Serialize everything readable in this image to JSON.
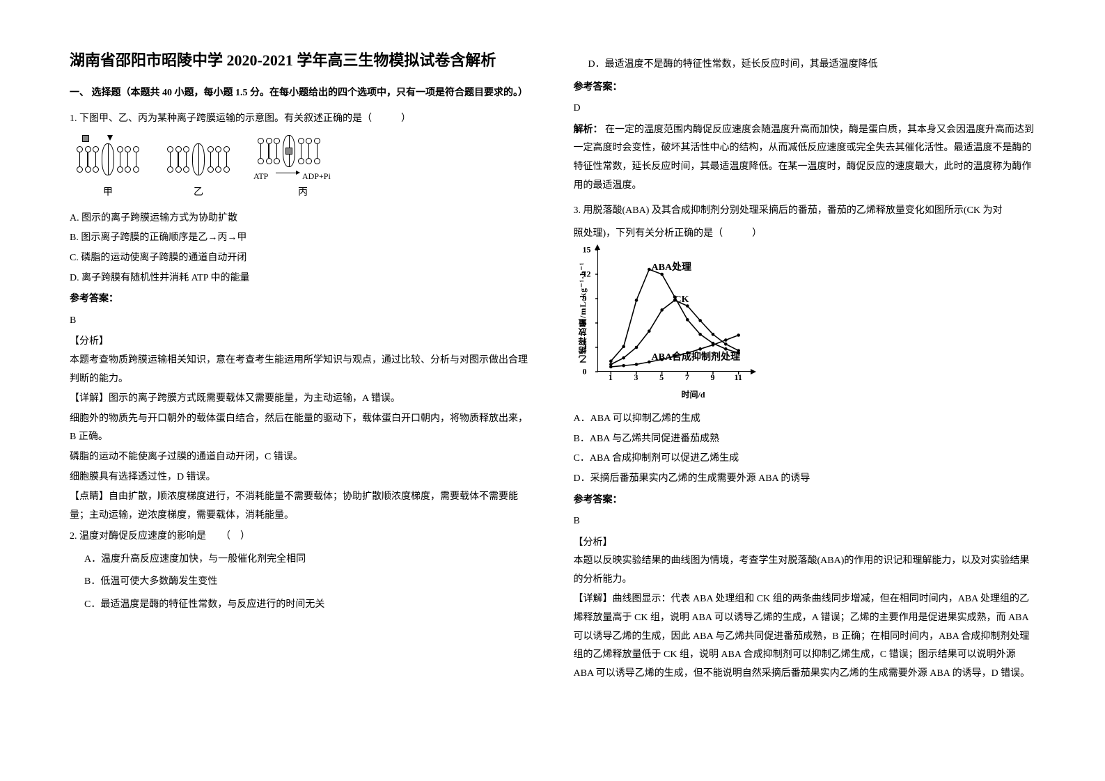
{
  "title": "湖南省邵阳市昭陵中学 2020-2021 学年高三生物模拟试卷含解析",
  "section1": {
    "heading_prefix": "一、 选择题（本题共",
    "heading_count": "40",
    "heading_mid": "小题，每小题",
    "heading_score": "1.5",
    "heading_suffix": "分。在每小题给出的四个选项中，只有一项是符合题目要求的。）"
  },
  "q1": {
    "stem": "1. 下图甲、乙、丙为某种离子跨膜运输的示意图。有关叙述正确的是（　　　）",
    "fig": {
      "labels": [
        "甲",
        "乙",
        "丙"
      ],
      "atp_left": "ATP",
      "atp_right": "ADP+Pi"
    },
    "opts": {
      "A": "A. 图示的离子跨膜运输方式为协助扩散",
      "B": "B. 图示离子跨膜的正确顺序是乙→丙→甲",
      "C": "C. 磷脂的运动使离子跨膜的通道自动开闭",
      "D": "D. 离子跨膜有随机性并消耗 ATP 中的能量"
    },
    "answer_label": "参考答案：",
    "answer": "B",
    "analysis_label": "【分析】",
    "analysis_p1": "本题考查物质跨膜运输相关知识，意在考查考生能运用所学知识与观点，通过比较、分析与对图示做出合理判断的能力。",
    "detail_p1": "【详解】图示的离子跨膜方式既需要载体又需要能量，为主动运输，A 错误。",
    "detail_p2": "细胞外的物质先与开口朝外的载体蛋白结合，然后在能量的驱动下，载体蛋白开口朝内，将物质释放出来，B 正确。",
    "detail_p3": "磷脂的运动不能使离子过膜的通道自动开闭，C 错误。",
    "detail_p4": "细胞膜具有选择透过性，D 错误。",
    "tip": "【点睛】自由扩散，顺浓度梯度进行，不消耗能量不需要载体；协助扩散顺浓度梯度，需要载体不需要能量；主动运输，逆浓度梯度，需要载体，消耗能量。"
  },
  "q2": {
    "stem": "2. 温度对酶促反应速度的影响是　　（　）",
    "opts": {
      "A": "A．温度升高反应速度加快，与一般催化剂完全相同",
      "B": "B．低温可使大多数酶发生变性",
      "C": "C．最适温度是酶的特征性常数，与反应进行的时间无关",
      "D": "D．最适温度不是酶的特征性常数，延长反应时间，其最适温度降低"
    },
    "answer_label": "参考答案：",
    "answer": "D",
    "analysis_label": "解析：",
    "analysis": "在一定的温度范围内酶促反应速度会随温度升高而加快，酶是蛋白质，其本身又会因温度升高而达到一定高度时会变性，破坏其活性中心的结构，从而减低反应速度或完全失去其催化活性。最适温度不是酶的特征性常数，延长反应时间，其最适温度降低。在某一温度时，酶促反应的速度最大，此时的温度称为酶作用的最适温度。"
  },
  "q3": {
    "stem_p1": "3. 用脱落酸(ABA) 及其合成抑制剂分别处理采摘后的番茄，番茄的乙烯释放量变化如图所示(CK 为对",
    "stem_p2": "照处理)，下列有关分析正确的是（　　　）",
    "chart": {
      "type": "line",
      "ylabel": "乙烯释放量/mL·kg⁻¹·h⁻¹",
      "xlabel": "时间/d",
      "xlim": [
        0,
        12
      ],
      "ylim": [
        0,
        15
      ],
      "xticks": [
        1,
        3,
        5,
        7,
        9,
        11
      ],
      "yticks": [
        0,
        3,
        6,
        9,
        12,
        15
      ],
      "series": [
        {
          "name": "ABA处理",
          "label_pos": {
            "x": 4.2,
            "y": 13.2
          },
          "points": [
            [
              1,
              1.3
            ],
            [
              2,
              3.1
            ],
            [
              3,
              8.8
            ],
            [
              4,
              12.6
            ],
            [
              5,
              12.0
            ],
            [
              6,
              9.2
            ],
            [
              7,
              6.4
            ],
            [
              8,
              4.6
            ],
            [
              9,
              3.5
            ],
            [
              10,
              2.8
            ],
            [
              11,
              2.3
            ]
          ]
        },
        {
          "name": "CK",
          "label_pos": {
            "x": 6.0,
            "y": 9.3
          },
          "points": [
            [
              1,
              0.9
            ],
            [
              2,
              1.7
            ],
            [
              3,
              3.0
            ],
            [
              4,
              5.0
            ],
            [
              5,
              7.6
            ],
            [
              6,
              8.8
            ],
            [
              7,
              8.1
            ],
            [
              8,
              6.3
            ],
            [
              9,
              4.6
            ],
            [
              10,
              3.4
            ],
            [
              11,
              2.6
            ]
          ]
        },
        {
          "name": "ABA合成抑制剂处理",
          "label_pos": {
            "x": 4.2,
            "y": 2.2
          },
          "points": [
            [
              1,
              0.6
            ],
            [
              2,
              0.75
            ],
            [
              3,
              0.9
            ],
            [
              4,
              1.2
            ],
            [
              5,
              1.5
            ],
            [
              6,
              1.9
            ],
            [
              7,
              2.3
            ],
            [
              8,
              2.8
            ],
            [
              9,
              3.3
            ],
            [
              10,
              3.9
            ],
            [
              11,
              4.5
            ]
          ]
        }
      ],
      "line_color": "#000000",
      "line_width": 1.6,
      "background": "#ffffff"
    },
    "opts": {
      "A": "A．ABA 可以抑制乙烯的生成",
      "B": "B．ABA 与乙烯共同促进番茄成熟",
      "C": "C．ABA 合成抑制剂可以促进乙烯生成",
      "D": "D．采摘后番茄果实内乙烯的生成需要外源 ABA 的诱导"
    },
    "answer_label": "参考答案：",
    "answer": "B",
    "analysis_label": "【分析】",
    "analysis_p1": "本题以反映实验结果的曲线图为情境，考查学生对脱落酸(ABA)的作用的识记和理解能力，以及对实验结果的分析能力。",
    "detail": "【详解】曲线图显示：代表 ABA 处理组和 CK 组的两条曲线同步增减，但在相同时间内，ABA 处理组的乙烯释放量高于 CK 组，说明 ABA 可以诱导乙烯的生成，A 错误；乙烯的主要作用是促进果实成熟，而 ABA 可以诱导乙烯的生成，因此 ABA 与乙烯共同促进番茄成熟，B 正确；在相同时间内，ABA 合成抑制剂处理组的乙烯释放量低于 CK 组，说明 ABA 合成抑制剂可以抑制乙烯生成，C 错误；图示结果可以说明外源 ABA 可以诱导乙烯的生成，但不能说明自然采摘后番茄果实内乙烯的生成需要外源 ABA 的诱导，D 错误。"
  }
}
